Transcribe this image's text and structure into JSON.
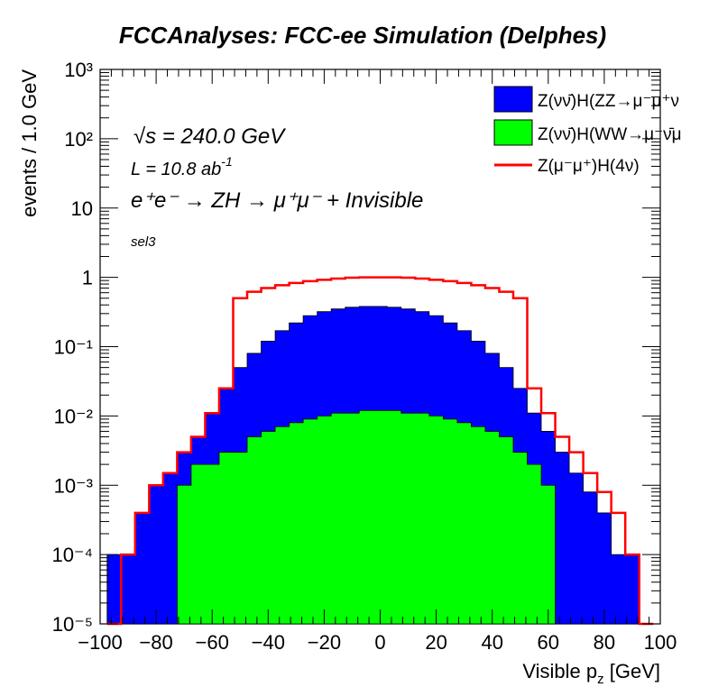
{
  "title": "FCCAnalyses: FCC-ee Simulation (Delphes)",
  "annotations": {
    "sqrt_s": "= 240.0 GeV",
    "sqrt_s_symbol": "√s",
    "lumi": "L = 10.8 ab",
    "lumi_exp": "-1",
    "process": "e⁺e⁻ → ZH → μ⁺μ⁻ + Invisible",
    "selection": "sel3"
  },
  "chart_data": {
    "type": "histogram",
    "title": "FCCAnalyses: FCC-ee Simulation (Delphes)",
    "xlabel": "Visible p_z [GeV]",
    "ylabel": "events / 1.0 GeV",
    "xlim": [
      -100,
      100
    ],
    "ylim": [
      1e-05,
      1000
    ],
    "yscale": "log",
    "x_ticks": [
      "−100",
      "−80",
      "−60",
      "−40",
      "−20",
      "0",
      "20",
      "40",
      "60",
      "80",
      "100"
    ],
    "y_ticks": [
      "10⁻⁵",
      "10⁻⁴",
      "10⁻³",
      "10⁻²",
      "10⁻¹",
      "1",
      "10",
      "10²",
      "10³"
    ],
    "legend_position": "top-right",
    "legend": [
      {
        "label": "Z(νν̄)H(ZZ→μ⁻μ⁺ν",
        "style": "fill",
        "color": "#0000ff"
      },
      {
        "label": "Z(νν̄)H(WW→μ⁻ν̄μ",
        "style": "fill",
        "color": "#00ff00"
      },
      {
        "label": "Z(μ⁻μ⁺)H(4ν)",
        "style": "line",
        "color": "#ff0000"
      }
    ],
    "series": [
      {
        "name": "Z(νν̄)H(ZZ→μ⁻μ⁺ν",
        "kind": "stacked-fill",
        "color": "#0000ff",
        "x": [
          -95,
          -90,
          -85,
          -80,
          -75,
          -70,
          -65,
          -60,
          -55,
          -50,
          -45,
          -40,
          -35,
          -30,
          -25,
          -20,
          -15,
          -10,
          -5,
          0,
          5,
          10,
          15,
          20,
          25,
          30,
          35,
          40,
          45,
          50,
          55,
          60,
          65,
          70,
          75,
          80,
          85,
          90
        ],
        "values": [
          0.0001,
          0.0001,
          0.0004,
          0.001,
          0.0015,
          0.003,
          0.005,
          0.011,
          0.025,
          0.05,
          0.08,
          0.12,
          0.17,
          0.22,
          0.28,
          0.32,
          0.35,
          0.37,
          0.38,
          0.38,
          0.37,
          0.35,
          0.32,
          0.28,
          0.22,
          0.17,
          0.12,
          0.08,
          0.05,
          0.025,
          0.011,
          0.006,
          0.003,
          0.0015,
          0.0008,
          0.0004,
          0.0001,
          0.0001
        ]
      },
      {
        "name": "Z(νν̄)H(WW→μ⁻ν̄μ",
        "kind": "fill",
        "color": "#00ff00",
        "x": [
          -70,
          -65,
          -60,
          -55,
          -50,
          -45,
          -40,
          -35,
          -30,
          -25,
          -20,
          -15,
          -10,
          -5,
          0,
          5,
          10,
          15,
          20,
          25,
          30,
          35,
          40,
          45,
          50,
          55,
          60
        ],
        "values": [
          0.001,
          0.002,
          0.002,
          0.003,
          0.003,
          0.005,
          0.006,
          0.007,
          0.008,
          0.009,
          0.01,
          0.011,
          0.011,
          0.012,
          0.012,
          0.012,
          0.011,
          0.011,
          0.01,
          0.009,
          0.008,
          0.007,
          0.006,
          0.005,
          0.003,
          0.002,
          0.001
        ]
      },
      {
        "name": "Z(μ⁻μ⁺)H(4ν)",
        "kind": "line",
        "color": "#ff0000",
        "x": [
          -95,
          -90,
          -85,
          -80,
          -75,
          -70,
          -65,
          -60,
          -55,
          -50,
          -45,
          -40,
          -35,
          -30,
          -25,
          -20,
          -15,
          -10,
          -5,
          0,
          5,
          10,
          15,
          20,
          25,
          30,
          35,
          40,
          45,
          50,
          55,
          60,
          65,
          70,
          75,
          80,
          85,
          90,
          95
        ],
        "values": [
          1e-05,
          0.0001,
          0.0004,
          0.001,
          0.0015,
          0.003,
          0.005,
          0.011,
          0.025,
          0.5,
          0.62,
          0.7,
          0.77,
          0.83,
          0.88,
          0.92,
          0.96,
          0.99,
          1.0,
          1.0,
          1.0,
          0.99,
          0.96,
          0.92,
          0.88,
          0.83,
          0.77,
          0.7,
          0.62,
          0.5,
          0.025,
          0.011,
          0.005,
          0.003,
          0.0015,
          0.0008,
          0.0004,
          0.0001,
          1e-05
        ]
      }
    ]
  }
}
